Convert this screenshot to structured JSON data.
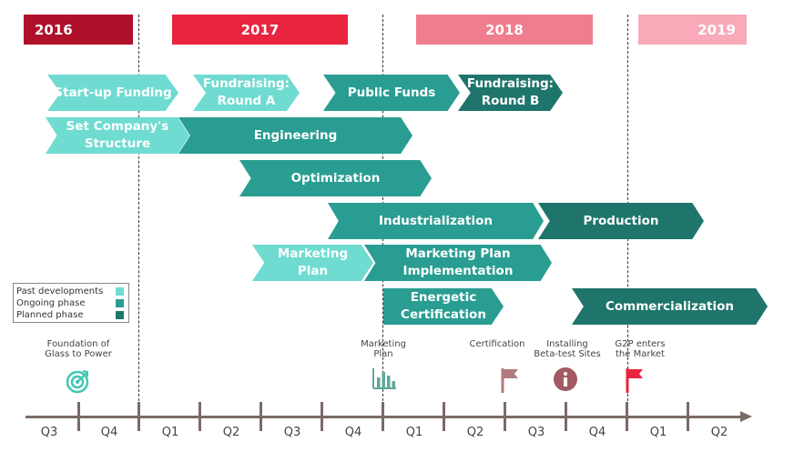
{
  "years": [
    {
      "label": "2016",
      "color": "#b0112a"
    },
    {
      "label": "2017",
      "color": "#e8243f"
    },
    {
      "label": "2018",
      "color": "#f07d8e"
    },
    {
      "label": "2019",
      "color": "#f8aab8"
    }
  ],
  "bars": {
    "startup_funding": {
      "label": "Start-up Funding",
      "phase": "past"
    },
    "fundraising_a": {
      "label": "Fundraising:\nRound A",
      "phase": "past"
    },
    "public_funds": {
      "label": "Public Funds",
      "phase": "ongoing"
    },
    "fundraising_b": {
      "label": "Fundraising:\nRound B",
      "phase": "planned"
    },
    "company_structure": {
      "label": "Set Company's\nStructure",
      "phase": "past"
    },
    "engineering": {
      "label": "Engineering",
      "phase": "ongoing"
    },
    "optimization": {
      "label": "Optimization",
      "phase": "ongoing"
    },
    "industrialization": {
      "label": "Industrialization",
      "phase": "ongoing"
    },
    "production": {
      "label": "Production",
      "phase": "planned"
    },
    "marketing_plan": {
      "label": "Marketing\nPlan",
      "phase": "past"
    },
    "marketing_impl": {
      "label": "Marketing Plan\nImplementation",
      "phase": "ongoing"
    },
    "energetic_cert": {
      "label": "Energetic\nCertification",
      "phase": "ongoing"
    },
    "commercialization": {
      "label": "Commercialization",
      "phase": "planned"
    }
  },
  "legend": [
    {
      "label": "Past developments",
      "color": "#6fdbd1"
    },
    {
      "label": "Ongoing phase",
      "color": "#2a9d92"
    },
    {
      "label": "Planned phase",
      "color": "#1f756b"
    }
  ],
  "milestones": [
    {
      "label": "Foundation of\nGlass to Power",
      "icon": "target-icon"
    },
    {
      "label": "Marketing\nPlan",
      "icon": "bar-chart-icon"
    },
    {
      "label": "Certification",
      "icon": "flag-icon"
    },
    {
      "label": "Installing\nBeta-test Sites",
      "icon": "info-icon"
    },
    {
      "label": "G2P enters\nthe Market",
      "icon": "flag-icon"
    }
  ],
  "quarters": [
    "Q3",
    "Q4",
    "Q1",
    "Q2",
    "Q3",
    "Q4",
    "Q1",
    "Q2",
    "Q3",
    "Q4",
    "Q1",
    "Q2"
  ]
}
